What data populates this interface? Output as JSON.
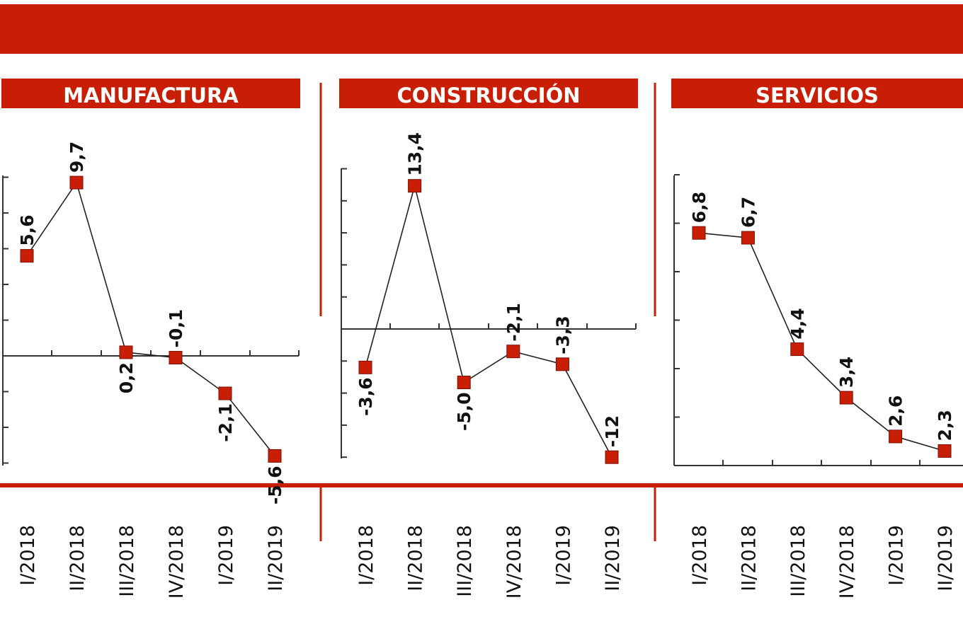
{
  "colors": {
    "accent": "#c81e06",
    "line": "#222222",
    "axis": "#333333"
  },
  "chart_data": [
    {
      "type": "line",
      "title": "MANUFACTURA",
      "categories": [
        "I/2018",
        "II/2018",
        "III/2018",
        "IV/2018",
        "I/2019",
        "II/2019"
      ],
      "values": [
        5.6,
        9.7,
        0.2,
        -0.1,
        -2.1,
        -5.6
      ],
      "labels": [
        "5,6",
        "9,7",
        "0,2",
        "-0,1",
        "-2,1",
        "-5,6"
      ],
      "ylim": [
        -6,
        10
      ]
    },
    {
      "type": "line",
      "title": "CONSTRUCCIÓN",
      "categories": [
        "I/2018",
        "II/2018",
        "III/2018",
        "IV/2018",
        "I/2019",
        "II/2019"
      ],
      "values": [
        -3.6,
        13.4,
        -5.0,
        -2.1,
        -3.3,
        -12
      ],
      "labels": [
        "-3,6",
        "13,4",
        "-5,0",
        "-2,1",
        "-3,3",
        "-12"
      ],
      "ylim": [
        -12,
        15
      ]
    },
    {
      "type": "line",
      "title": "SERVICIOS",
      "categories": [
        "I/2018",
        "II/2018",
        "III/2018",
        "IV/2018",
        "I/2019",
        "II/2019"
      ],
      "values": [
        6.8,
        6.7,
        4.4,
        3.4,
        2.6,
        2.3
      ],
      "labels": [
        "6,8",
        "6,7",
        "4,4",
        "3,4",
        "2,6",
        "2,3"
      ],
      "ylim": [
        2,
        8
      ]
    }
  ]
}
